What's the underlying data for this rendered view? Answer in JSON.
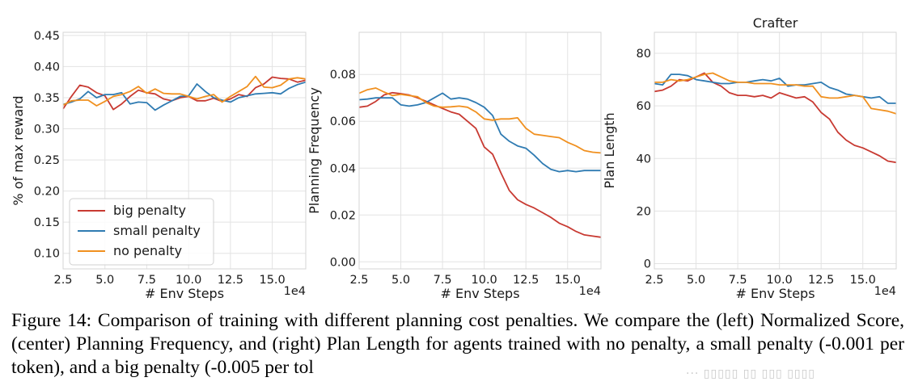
{
  "caption": {
    "label": "Figure 14:",
    "text": "Comparison of training with different planning cost penalties. We compare the (left) Normalized Score, (center) Planning Frequency, and (right) Plan Length for agents trained with no penalty, a small penalty (-0.001 per token), and a big penalty (-0.005 per tol"
  },
  "watermark": "··· ▯▯▯▯▯ ▯▯ ▯▯▯ ▯▯▯▯",
  "colors": {
    "big": "#c83a32",
    "small": "#2f7bb2",
    "none": "#f0901f"
  },
  "chart_data": [
    {
      "type": "line",
      "title": "",
      "xlabel": "# Env Steps",
      "ylabel": "% of max reward",
      "x_exponent": "1e4",
      "xlim": [
        2.5,
        17.0
      ],
      "ylim": [
        0.075,
        0.455
      ],
      "xticks": [
        "2.5",
        "5.0",
        "7.5",
        "10.0",
        "12.5",
        "15.0"
      ],
      "yticks": [
        "0.10",
        "0.15",
        "0.20",
        "0.25",
        "0.30",
        "0.35",
        "0.40",
        "0.45"
      ],
      "grid": true,
      "legend": {
        "position": "lower-left",
        "entries": [
          "big penalty",
          "small penalty",
          "no penalty"
        ]
      },
      "x": [
        2.5,
        3.0,
        3.5,
        4.0,
        4.5,
        5.0,
        5.5,
        6.0,
        6.5,
        7.0,
        7.5,
        8.0,
        8.5,
        9.0,
        9.5,
        10.0,
        10.5,
        11.0,
        11.5,
        12.0,
        12.5,
        13.0,
        13.5,
        14.0,
        14.5,
        15.0,
        15.5,
        16.0,
        16.5,
        17.0
      ],
      "series": [
        {
          "name": "big penalty",
          "color_key": "big",
          "values": [
            0.332,
            0.352,
            0.37,
            0.367,
            0.358,
            0.353,
            0.331,
            0.34,
            0.352,
            0.362,
            0.358,
            0.356,
            0.348,
            0.345,
            0.35,
            0.352,
            0.345,
            0.345,
            0.349,
            0.344,
            0.348,
            0.355,
            0.352,
            0.366,
            0.372,
            0.383,
            0.381,
            0.38,
            0.375,
            0.378
          ]
        },
        {
          "name": "small penalty",
          "color_key": "small",
          "values": [
            0.339,
            0.343,
            0.348,
            0.36,
            0.35,
            0.355,
            0.355,
            0.358,
            0.34,
            0.343,
            0.342,
            0.33,
            0.338,
            0.345,
            0.352,
            0.353,
            0.372,
            0.36,
            0.35,
            0.346,
            0.343,
            0.35,
            0.353,
            0.356,
            0.357,
            0.358,
            0.356,
            0.365,
            0.371,
            0.375
          ]
        },
        {
          "name": "no penalty",
          "color_key": "none",
          "values": [
            0.338,
            0.345,
            0.346,
            0.346,
            0.337,
            0.344,
            0.352,
            0.355,
            0.36,
            0.368,
            0.357,
            0.364,
            0.357,
            0.356,
            0.356,
            0.352,
            0.348,
            0.352,
            0.355,
            0.343,
            0.352,
            0.36,
            0.368,
            0.384,
            0.367,
            0.366,
            0.37,
            0.38,
            0.382,
            0.38
          ]
        }
      ]
    },
    {
      "type": "line",
      "title": "",
      "xlabel": "# Env Steps",
      "ylabel": "Planning Frequency",
      "x_exponent": "1e4",
      "xlim": [
        2.5,
        17.0
      ],
      "ylim": [
        -0.003,
        0.098
      ],
      "xticks": [
        "2.5",
        "5.0",
        "7.5",
        "10.0",
        "12.5",
        "15.0"
      ],
      "yticks": [
        "0.00",
        "0.02",
        "0.04",
        "0.06",
        "0.08"
      ],
      "grid": true,
      "x": [
        2.5,
        3.0,
        3.5,
        4.0,
        4.5,
        5.0,
        5.5,
        6.0,
        6.5,
        7.0,
        7.5,
        8.0,
        8.5,
        9.0,
        9.5,
        10.0,
        10.5,
        11.0,
        11.5,
        12.0,
        12.5,
        13.0,
        13.5,
        14.0,
        14.5,
        15.0,
        15.5,
        16.0,
        16.5,
        17.0
      ],
      "series": [
        {
          "name": "big penalty",
          "color_key": "big",
          "values": [
            0.066,
            0.0665,
            0.0685,
            0.0713,
            0.0722,
            0.0718,
            0.0712,
            0.07,
            0.0686,
            0.067,
            0.0655,
            0.064,
            0.063,
            0.06,
            0.057,
            0.049,
            0.046,
            0.038,
            0.0305,
            0.0265,
            0.0245,
            0.023,
            0.021,
            0.019,
            0.0165,
            0.015,
            0.013,
            0.0115,
            0.011,
            0.0105
          ]
        },
        {
          "name": "small penalty",
          "color_key": "small",
          "values": [
            0.0692,
            0.0695,
            0.07,
            0.07,
            0.07,
            0.067,
            0.0665,
            0.067,
            0.068,
            0.07,
            0.072,
            0.0695,
            0.07,
            0.0695,
            0.068,
            0.066,
            0.0625,
            0.0545,
            0.0515,
            0.0495,
            0.0485,
            0.0455,
            0.042,
            0.0395,
            0.0385,
            0.039,
            0.0385,
            0.039,
            0.039,
            0.039
          ]
        },
        {
          "name": "no penalty",
          "color_key": "none",
          "values": [
            0.072,
            0.0735,
            0.0742,
            0.0725,
            0.071,
            0.0715,
            0.071,
            0.0705,
            0.068,
            0.0665,
            0.066,
            0.0662,
            0.0665,
            0.066,
            0.064,
            0.061,
            0.0605,
            0.061,
            0.061,
            0.0615,
            0.057,
            0.0545,
            0.054,
            0.0535,
            0.053,
            0.051,
            0.0495,
            0.0475,
            0.0468,
            0.0465
          ]
        }
      ]
    },
    {
      "type": "line",
      "title": "Crafter",
      "xlabel": "# Env Steps",
      "ylabel": "Plan Length",
      "x_exponent": "1e4",
      "xlim": [
        2.5,
        17.0
      ],
      "ylim": [
        -2,
        88
      ],
      "xticks": [
        "2.5",
        "5.0",
        "7.5",
        "10.0",
        "12.5",
        "15.0"
      ],
      "yticks": [
        "0",
        "20",
        "40",
        "60",
        "80"
      ],
      "grid": true,
      "x": [
        2.5,
        3.0,
        3.5,
        4.0,
        4.5,
        5.0,
        5.5,
        6.0,
        6.5,
        7.0,
        7.5,
        8.0,
        8.5,
        9.0,
        9.5,
        10.0,
        10.5,
        11.0,
        11.5,
        12.0,
        12.5,
        13.0,
        13.5,
        14.0,
        14.5,
        15.0,
        15.5,
        16.0,
        16.5,
        17.0
      ],
      "series": [
        {
          "name": "big penalty",
          "color_key": "big",
          "values": [
            65.5,
            66.0,
            67.5,
            70.0,
            69.5,
            71.0,
            72.5,
            69.0,
            67.5,
            65.0,
            64.0,
            64.0,
            63.5,
            64.0,
            63.0,
            65.0,
            64.0,
            63.0,
            63.5,
            61.5,
            57.5,
            55.0,
            50.0,
            47.0,
            45.0,
            44.0,
            42.5,
            41.0,
            39.0,
            38.5
          ]
        },
        {
          "name": "small penalty",
          "color_key": "small",
          "values": [
            68.5,
            68.0,
            72.0,
            72.0,
            71.5,
            70.0,
            69.5,
            69.0,
            68.5,
            68.5,
            69.0,
            69.0,
            69.5,
            70.0,
            69.5,
            70.5,
            67.5,
            68.0,
            68.0,
            68.5,
            69.0,
            67.0,
            66.0,
            64.5,
            64.0,
            63.5,
            63.0,
            63.5,
            61.0,
            61.0
          ]
        },
        {
          "name": "no penalty",
          "color_key": "none",
          "values": [
            69.0,
            69.0,
            70.0,
            69.5,
            70.0,
            71.0,
            72.0,
            72.5,
            71.0,
            69.5,
            69.0,
            69.0,
            68.5,
            68.5,
            68.5,
            68.0,
            68.0,
            68.0,
            67.5,
            67.5,
            63.5,
            63.0,
            63.0,
            63.5,
            64.0,
            63.5,
            59.0,
            58.5,
            58.0,
            57.0
          ]
        }
      ]
    }
  ]
}
